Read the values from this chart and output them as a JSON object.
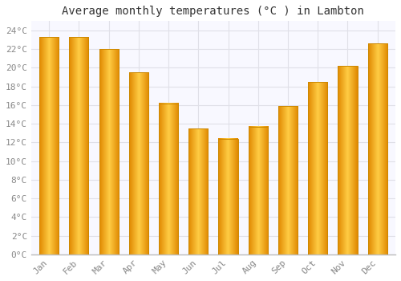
{
  "title": "Average monthly temperatures (°C ) in Lambton",
  "months": [
    "Jan",
    "Feb",
    "Mar",
    "Apr",
    "May",
    "Jun",
    "Jul",
    "Aug",
    "Sep",
    "Oct",
    "Nov",
    "Dec"
  ],
  "values": [
    23.3,
    23.3,
    22.0,
    19.5,
    16.2,
    13.5,
    12.4,
    13.7,
    15.9,
    18.5,
    20.2,
    22.6
  ],
  "bar_color_center": "#FFCC44",
  "bar_color_edge": "#E08800",
  "background_color": "#FFFFFF",
  "plot_bg_color": "#F8F8FF",
  "grid_color": "#E0E0E8",
  "ylim": [
    0,
    25
  ],
  "yticks": [
    0,
    2,
    4,
    6,
    8,
    10,
    12,
    14,
    16,
    18,
    20,
    22,
    24
  ],
  "title_fontsize": 10,
  "tick_fontsize": 8,
  "font_family": "monospace",
  "bar_width": 0.65
}
